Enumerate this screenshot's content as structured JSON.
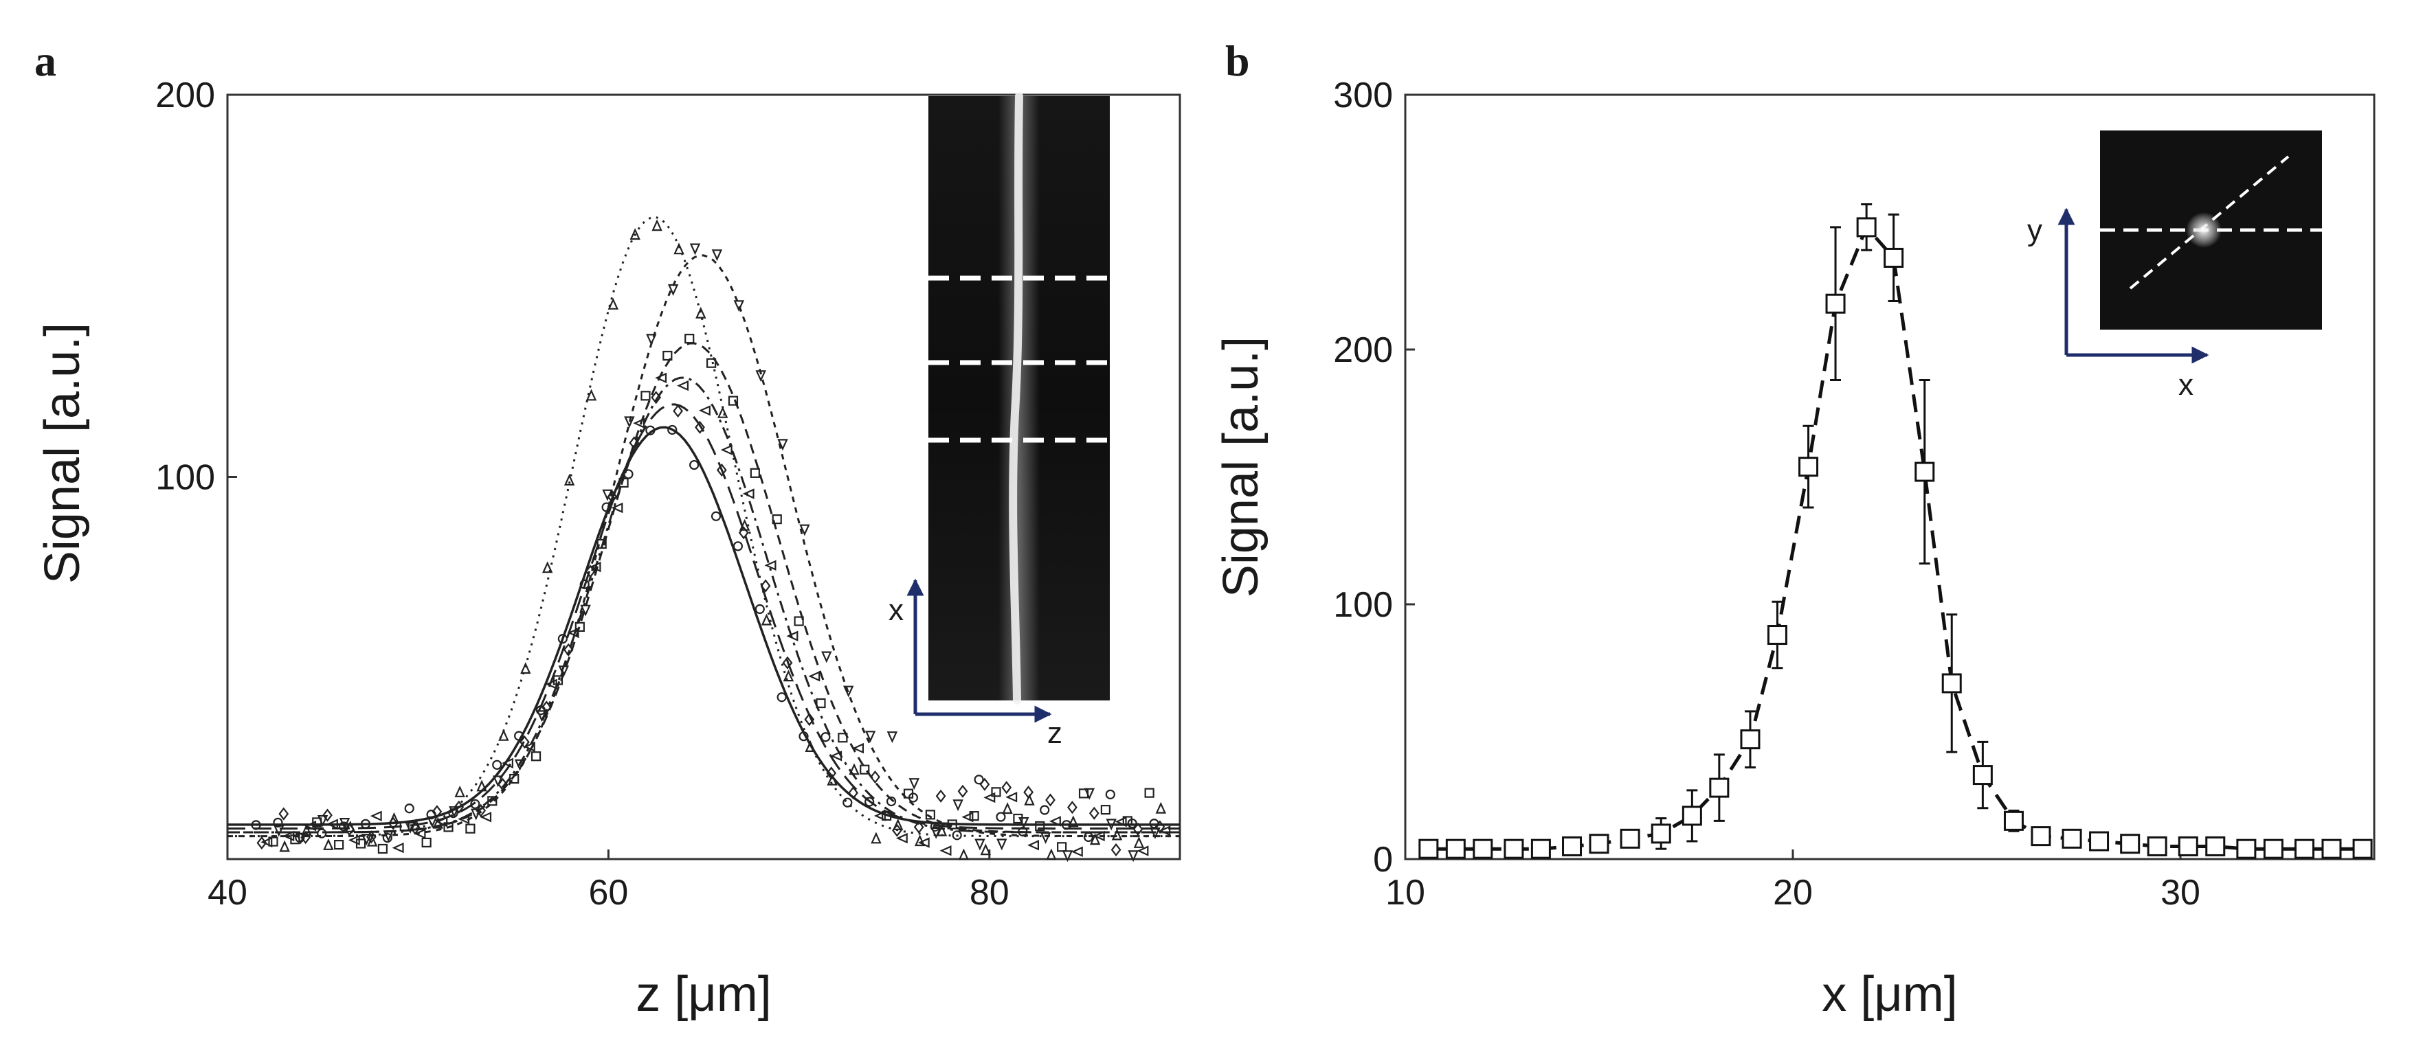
{
  "figure": {
    "panel_a_label": "a",
    "panel_b_label": "b"
  },
  "chart_data": [
    {
      "type": "scatter",
      "panel": "a",
      "xlabel": "z [μm]",
      "ylabel": "Signal [a.u.]",
      "xlim": [
        40,
        90
      ],
      "ylim": [
        0,
        200
      ],
      "x_ticks": [
        40,
        60,
        80
      ],
      "y_ticks": [
        100,
        200
      ],
      "grid": false,
      "legend": "none",
      "fits": [
        {
          "style": "solid",
          "center": 62.9,
          "sigma": 4.3,
          "amplitude": 104,
          "baseline": 9
        },
        {
          "style": "long-dash",
          "center": 63.4,
          "sigma": 4.4,
          "amplitude": 111,
          "baseline": 8
        },
        {
          "style": "dash-dot",
          "center": 63.9,
          "sigma": 4.4,
          "amplitude": 119,
          "baseline": 7
        },
        {
          "style": "dash",
          "center": 64.4,
          "sigma": 4.5,
          "amplitude": 128,
          "baseline": 7
        },
        {
          "style": "short-dash",
          "center": 64.9,
          "sigma": 4.6,
          "amplitude": 152,
          "baseline": 6
        },
        {
          "style": "dotted",
          "center": 62.4,
          "sigma": 4.2,
          "amplitude": 162,
          "baseline": 6
        }
      ],
      "scatter_markers": [
        "circle",
        "diamond",
        "triangle-left",
        "square",
        "triangle-down",
        "triangle-up"
      ],
      "inset": {
        "description": "fluorescence image strip",
        "axis_labels": {
          "vertical": "x",
          "horizontal": "z"
        },
        "dashed_lines": 3
      }
    },
    {
      "type": "line",
      "panel": "b",
      "xlabel": "x [μm]",
      "ylabel": "Signal [a.u.]",
      "xlim": [
        10,
        35
      ],
      "ylim": [
        0,
        300
      ],
      "x_ticks": [
        10,
        20,
        30
      ],
      "y_ticks": [
        0,
        100,
        200,
        300
      ],
      "grid": false,
      "legend": "none",
      "marker": "square",
      "line_style": "dashed",
      "series": [
        {
          "x": [
            10.6,
            11.3,
            12.0,
            12.8,
            13.5,
            14.3,
            15.0,
            15.8,
            16.6,
            17.4,
            18.1,
            18.9,
            19.6,
            20.4,
            21.1,
            21.9,
            22.6,
            23.4,
            24.1,
            24.9,
            25.7,
            26.4,
            27.2,
            27.9,
            28.7,
            29.4,
            30.2,
            30.9,
            31.7,
            32.4,
            33.2,
            33.9,
            34.7
          ],
          "y": [
            4,
            4,
            4,
            4,
            4,
            5,
            6,
            8,
            10,
            17,
            28,
            47,
            88,
            154,
            218,
            248,
            236,
            152,
            69,
            33,
            15,
            9,
            8,
            7,
            6,
            5,
            5,
            5,
            4,
            4,
            4,
            4,
            4
          ],
          "err": [
            2,
            2,
            2,
            2,
            2,
            2,
            3,
            3,
            6,
            10,
            13,
            11,
            13,
            16,
            30,
            9,
            17,
            36,
            27,
            13,
            4,
            2,
            2,
            2,
            2,
            2,
            2,
            2,
            2,
            2,
            2,
            2,
            2
          ]
        }
      ],
      "inset": {
        "description": "fluorescence image of a bright spot",
        "axis_labels": {
          "vertical": "y",
          "horizontal": "x"
        },
        "dashed_lines": 2
      }
    }
  ]
}
